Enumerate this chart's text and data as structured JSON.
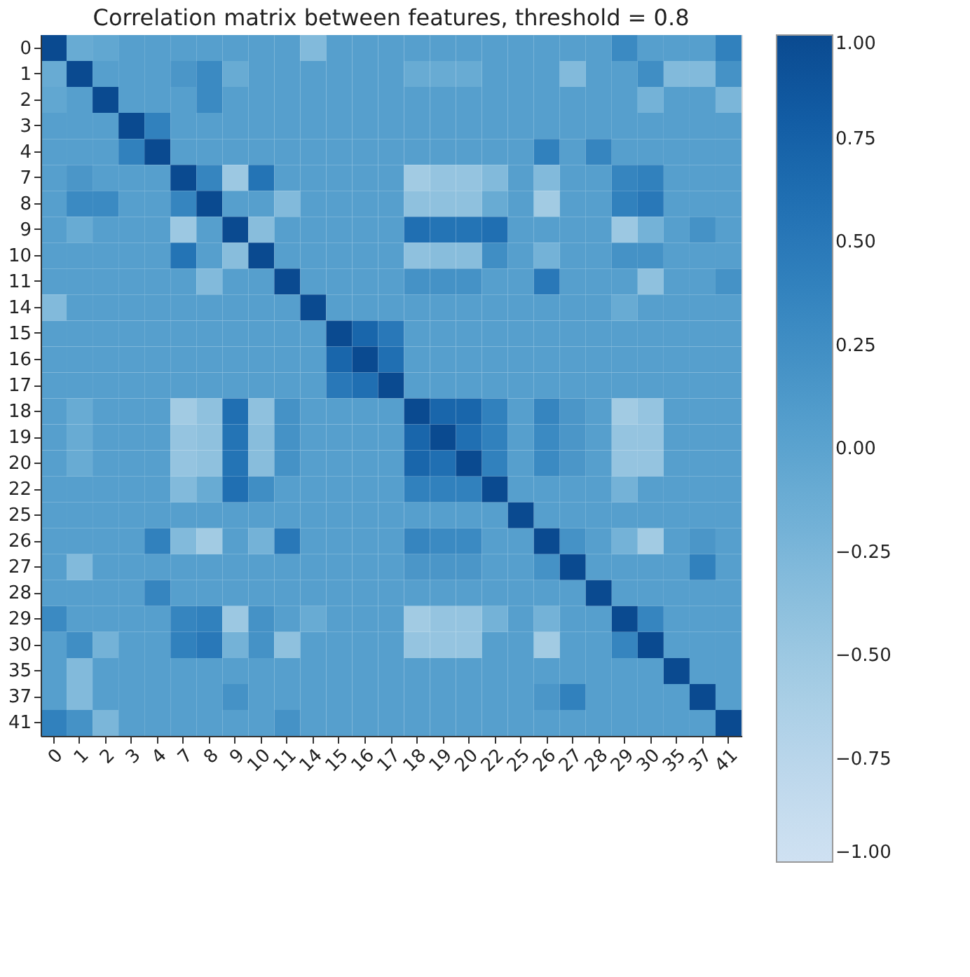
{
  "chart_data": {
    "type": "heatmap",
    "title": "Correlation matrix between features, threshold = 0.8",
    "categories": [
      "0",
      "1",
      "2",
      "3",
      "4",
      "7",
      "8",
      "9",
      "10",
      "11",
      "14",
      "15",
      "16",
      "17",
      "18",
      "19",
      "20",
      "22",
      "25",
      "26",
      "27",
      "28",
      "29",
      "30",
      "35",
      "37",
      "41"
    ],
    "y_categories": [
      "0",
      "1",
      "2",
      "3",
      "4",
      "7",
      "8",
      "9",
      "10",
      "11",
      "14",
      "15",
      "16",
      "17",
      "18",
      "19",
      "20",
      "22",
      "25",
      "26",
      "27",
      "28",
      "29",
      "30",
      "35",
      "37",
      "41"
    ],
    "clim": [
      -1,
      1
    ],
    "cticks": [
      {
        "value": -1,
        "label": "−1.00"
      },
      {
        "value": -0.75,
        "label": "−0.75"
      },
      {
        "value": -0.5,
        "label": "−0.50"
      },
      {
        "value": -0.25,
        "label": "−0.25"
      },
      {
        "value": 0,
        "label": "0.00"
      },
      {
        "value": 0.25,
        "label": "0.25"
      },
      {
        "value": 0.5,
        "label": "0.50"
      },
      {
        "value": 0.75,
        "label": "0.75"
      },
      {
        "value": 1,
        "label": "1.00"
      }
    ],
    "cells": [
      [
        1,
        -0.1,
        -0.05,
        0.05,
        0.05,
        0.05,
        0.05,
        0.05,
        0.05,
        0.05,
        -0.3,
        0.05,
        0.05,
        0.05,
        0.05,
        0.05,
        0.05,
        0.05,
        0.05,
        0.05,
        0.05,
        0.05,
        0.3,
        0.05,
        0.05,
        0.05,
        0.4
      ],
      [
        -0.1,
        1,
        0.05,
        0.05,
        0.05,
        0.15,
        0.3,
        -0.1,
        0.05,
        0.05,
        0.05,
        0.05,
        0.05,
        0.05,
        -0.1,
        -0.1,
        -0.1,
        0.05,
        0.05,
        0.05,
        -0.3,
        0.05,
        0.05,
        0.25,
        -0.3,
        -0.3,
        0.2
      ],
      [
        -0.05,
        0.05,
        1,
        0.05,
        0.05,
        0.05,
        0.3,
        0.05,
        0.05,
        0.05,
        0.05,
        0.05,
        0.05,
        0.05,
        0.05,
        0.05,
        0.05,
        0.05,
        0.05,
        0.05,
        0.05,
        0.05,
        0.05,
        -0.2,
        0.05,
        0.05,
        -0.25
      ],
      [
        0.05,
        0.05,
        0.05,
        1,
        0.4,
        0.05,
        0.05,
        0.05,
        0.05,
        0.05,
        0.05,
        0.05,
        0.05,
        0.05,
        0.05,
        0.05,
        0.05,
        0.05,
        0.05,
        0.05,
        0.05,
        0.05,
        0.05,
        0.05,
        0.05,
        0.05,
        0.05
      ],
      [
        0.05,
        0.05,
        0.05,
        0.4,
        1,
        0.05,
        0.05,
        0.05,
        0.05,
        0.05,
        0.05,
        0.05,
        0.05,
        0.05,
        0.05,
        0.05,
        0.05,
        0.05,
        0.05,
        0.4,
        0.05,
        0.35,
        0.05,
        0.05,
        0.05,
        0.05,
        0.05
      ],
      [
        0.05,
        0.15,
        0.05,
        0.05,
        0.05,
        1,
        0.35,
        -0.5,
        0.55,
        0.05,
        0.05,
        0.05,
        0.05,
        0.05,
        -0.55,
        -0.45,
        -0.45,
        -0.3,
        0.05,
        -0.3,
        0.05,
        0.05,
        0.35,
        0.4,
        0.05,
        0.05,
        0.05
      ],
      [
        0.05,
        0.3,
        0.3,
        0.05,
        0.05,
        0.35,
        1,
        0.05,
        0.05,
        -0.3,
        0.05,
        0.05,
        0.05,
        0.05,
        -0.4,
        -0.4,
        -0.4,
        -0.1,
        0.05,
        -0.55,
        0.05,
        0.05,
        0.4,
        0.5,
        0.05,
        0.05,
        0.05
      ],
      [
        0.05,
        -0.1,
        0.05,
        0.05,
        0.05,
        -0.5,
        0.05,
        1,
        -0.35,
        0.05,
        0.05,
        0.05,
        0.05,
        0.05,
        0.6,
        0.55,
        0.55,
        0.6,
        0.05,
        0.05,
        0.05,
        0.05,
        -0.5,
        -0.2,
        0.05,
        0.2,
        0.05
      ],
      [
        0.05,
        0.05,
        0.05,
        0.05,
        0.05,
        0.55,
        0.05,
        -0.35,
        1,
        0.05,
        0.05,
        0.05,
        0.05,
        0.05,
        -0.4,
        -0.35,
        -0.35,
        0.25,
        0.05,
        -0.2,
        0.05,
        0.05,
        0.2,
        0.2,
        0.05,
        0.05,
        0.05
      ],
      [
        0.05,
        0.05,
        0.05,
        0.05,
        0.05,
        0.05,
        -0.3,
        0.05,
        0.05,
        1,
        0.05,
        0.05,
        0.05,
        0.05,
        0.2,
        0.2,
        0.2,
        0.05,
        0.05,
        0.5,
        0.05,
        0.05,
        0.05,
        -0.4,
        0.05,
        0.05,
        0.2
      ],
      [
        -0.3,
        0.05,
        0.05,
        0.05,
        0.05,
        0.05,
        0.05,
        0.05,
        0.05,
        0.05,
        1,
        0.05,
        0.05,
        0.05,
        0.05,
        0.05,
        0.05,
        0.05,
        0.05,
        0.05,
        0.05,
        0.05,
        -0.1,
        0.05,
        0.05,
        0.05,
        0.05
      ],
      [
        0.05,
        0.05,
        0.05,
        0.05,
        0.05,
        0.05,
        0.05,
        0.05,
        0.05,
        0.05,
        0.05,
        1,
        0.7,
        0.5,
        0.05,
        0.05,
        0.05,
        0.05,
        0.05,
        0.05,
        0.05,
        0.05,
        0.05,
        0.05,
        0.05,
        0.05,
        0.05
      ],
      [
        0.05,
        0.05,
        0.05,
        0.05,
        0.05,
        0.05,
        0.05,
        0.05,
        0.05,
        0.05,
        0.05,
        0.7,
        1,
        0.6,
        0.05,
        0.05,
        0.05,
        0.05,
        0.05,
        0.05,
        0.05,
        0.05,
        0.05,
        0.05,
        0.05,
        0.05,
        0.05
      ],
      [
        0.05,
        0.05,
        0.05,
        0.05,
        0.05,
        0.05,
        0.05,
        0.05,
        0.05,
        0.05,
        0.05,
        0.5,
        0.6,
        1,
        0.05,
        0.05,
        0.05,
        0.05,
        0.05,
        0.05,
        0.05,
        0.05,
        0.05,
        0.05,
        0.05,
        0.05,
        0.05
      ],
      [
        0.05,
        -0.1,
        0.05,
        0.05,
        0.05,
        -0.55,
        -0.4,
        0.6,
        -0.4,
        0.2,
        0.05,
        0.05,
        0.05,
        0.05,
        1,
        0.7,
        0.7,
        0.4,
        0.05,
        0.35,
        0.15,
        0.05,
        -0.55,
        -0.45,
        0.05,
        0.05,
        0.05
      ],
      [
        0.05,
        -0.1,
        0.05,
        0.05,
        0.05,
        -0.45,
        -0.4,
        0.55,
        -0.35,
        0.2,
        0.05,
        0.05,
        0.05,
        0.05,
        0.7,
        1,
        0.6,
        0.4,
        0.05,
        0.3,
        0.15,
        0.05,
        -0.45,
        -0.45,
        0.05,
        0.05,
        0.05
      ],
      [
        0.05,
        -0.1,
        0.05,
        0.05,
        0.05,
        -0.45,
        -0.4,
        0.55,
        -0.35,
        0.2,
        0.05,
        0.05,
        0.05,
        0.05,
        0.7,
        0.6,
        1,
        0.4,
        0.05,
        0.3,
        0.15,
        0.05,
        -0.45,
        -0.45,
        0.05,
        0.05,
        0.05
      ],
      [
        0.05,
        0.05,
        0.05,
        0.05,
        0.05,
        -0.3,
        -0.1,
        0.6,
        0.25,
        0.05,
        0.05,
        0.05,
        0.05,
        0.05,
        0.4,
        0.4,
        0.4,
        1,
        0.05,
        0.05,
        0.05,
        0.05,
        -0.2,
        0.05,
        0.05,
        0.05,
        0.05
      ],
      [
        0.05,
        0.05,
        0.05,
        0.05,
        0.05,
        0.05,
        0.05,
        0.05,
        0.05,
        0.05,
        0.05,
        0.05,
        0.05,
        0.05,
        0.05,
        0.05,
        0.05,
        0.05,
        1,
        0.05,
        0.05,
        0.05,
        0.05,
        0.05,
        0.05,
        0.05,
        0.05
      ],
      [
        0.05,
        0.05,
        0.05,
        0.05,
        0.4,
        -0.3,
        -0.55,
        0.05,
        -0.2,
        0.5,
        0.05,
        0.05,
        0.05,
        0.05,
        0.35,
        0.3,
        0.3,
        0.05,
        0.05,
        1,
        0.2,
        0.05,
        -0.2,
        -0.55,
        0.05,
        0.15,
        0.05
      ],
      [
        0.05,
        -0.3,
        0.05,
        0.05,
        0.05,
        0.05,
        0.05,
        0.05,
        0.05,
        0.05,
        0.05,
        0.05,
        0.05,
        0.05,
        0.15,
        0.15,
        0.15,
        0.05,
        0.05,
        0.2,
        1,
        0.05,
        0.05,
        0.05,
        0.05,
        0.4,
        0.05
      ],
      [
        0.05,
        0.05,
        0.05,
        0.05,
        0.35,
        0.05,
        0.05,
        0.05,
        0.05,
        0.05,
        0.05,
        0.05,
        0.05,
        0.05,
        0.05,
        0.05,
        0.05,
        0.05,
        0.05,
        0.05,
        0.05,
        1,
        0.05,
        0.05,
        0.05,
        0.05,
        0.05
      ],
      [
        0.3,
        0.05,
        0.05,
        0.05,
        0.05,
        0.35,
        0.4,
        -0.5,
        0.2,
        0.05,
        -0.1,
        0.05,
        0.05,
        0.05,
        -0.55,
        -0.45,
        -0.45,
        -0.2,
        0.05,
        -0.2,
        0.05,
        0.05,
        1,
        0.35,
        0.05,
        0.05,
        0.05
      ],
      [
        0.05,
        0.25,
        -0.2,
        0.05,
        0.05,
        0.4,
        0.5,
        -0.2,
        0.2,
        -0.4,
        0.05,
        0.05,
        0.05,
        0.05,
        -0.45,
        -0.45,
        -0.45,
        0.05,
        0.05,
        -0.55,
        0.05,
        0.05,
        0.35,
        1,
        0.05,
        0.05,
        0.05
      ],
      [
        0.05,
        -0.3,
        0.05,
        0.05,
        0.05,
        0.05,
        0.05,
        0.05,
        0.05,
        0.05,
        0.05,
        0.05,
        0.05,
        0.05,
        0.05,
        0.05,
        0.05,
        0.05,
        0.05,
        0.05,
        0.05,
        0.05,
        0.05,
        0.05,
        1,
        0.05,
        0.05
      ],
      [
        0.05,
        -0.3,
        0.05,
        0.05,
        0.05,
        0.05,
        0.05,
        0.2,
        0.05,
        0.05,
        0.05,
        0.05,
        0.05,
        0.05,
        0.05,
        0.05,
        0.05,
        0.05,
        0.05,
        0.15,
        0.4,
        0.05,
        0.05,
        0.05,
        0.05,
        1,
        0.05
      ],
      [
        0.4,
        0.2,
        -0.25,
        0.05,
        0.05,
        0.05,
        0.05,
        0.05,
        0.05,
        0.2,
        0.05,
        0.05,
        0.05,
        0.05,
        0.05,
        0.05,
        0.05,
        0.05,
        0.05,
        0.05,
        0.05,
        0.05,
        0.05,
        0.05,
        0.05,
        0.05,
        1
      ]
    ]
  }
}
